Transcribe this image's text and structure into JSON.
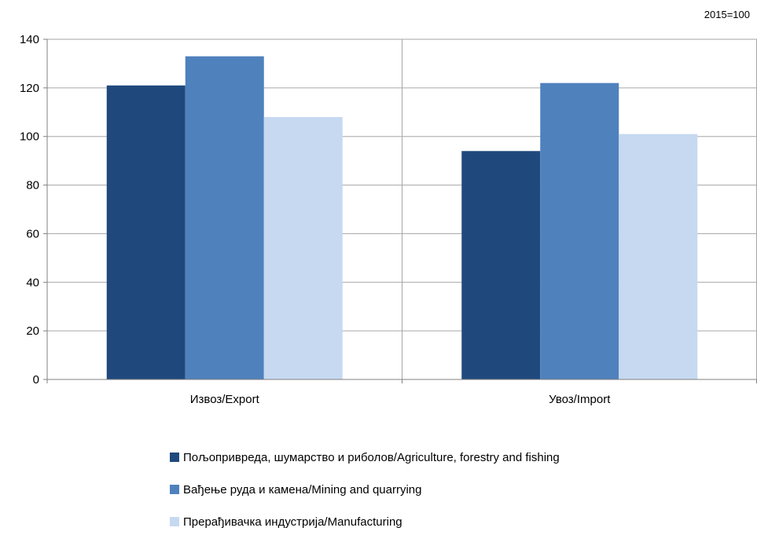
{
  "chart_data": {
    "type": "bar",
    "note": "2015=100",
    "categories": [
      "Извоз/Export",
      "Увоз/Import"
    ],
    "series": [
      {
        "name": "Пољопривреда, шумарство и риболов/Agriculture, forestry and fishing",
        "values": [
          121,
          94
        ],
        "color": "#1f497d"
      },
      {
        "name": "Вађење руда и камена/Mining and quarrying",
        "values": [
          133,
          122
        ],
        "color": "#4f81bd"
      },
      {
        "name": "Прерађивачка индустрија/Manufacturing",
        "values": [
          108,
          101
        ],
        "color": "#c6d9f1"
      }
    ],
    "ylim": [
      0,
      140
    ],
    "yticks": [
      0,
      20,
      40,
      60,
      80,
      100,
      120,
      140
    ],
    "grid": true,
    "legend_position": "bottom"
  }
}
